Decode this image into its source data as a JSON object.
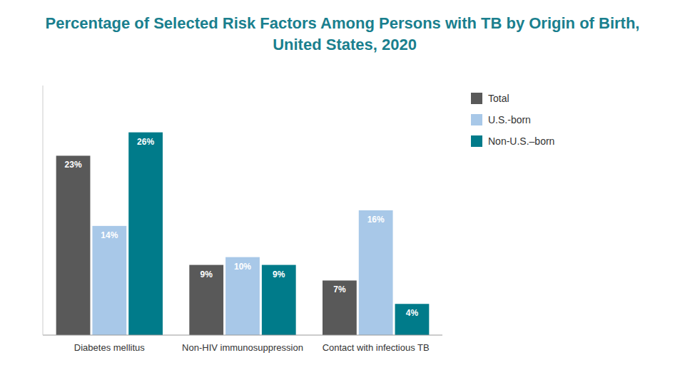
{
  "chart_data": {
    "type": "bar",
    "title": "Percentage of Selected Risk Factors Among Persons with TB by Origin of Birth, United States, 2020",
    "title_color": "#1a7f8e",
    "categories": [
      "Diabetes mellitus",
      "Non-HIV immunosuppression",
      "Contact with infectious TB"
    ],
    "series": [
      {
        "name": "Total",
        "color": "#595959",
        "values": [
          23,
          9,
          7
        ],
        "value_labels": [
          "23%",
          "9%",
          "7%"
        ]
      },
      {
        "name": "U.S.-born",
        "color": "#a8c8e8",
        "values": [
          14,
          10,
          16
        ],
        "value_labels": [
          "14%",
          "10%",
          "16%"
        ]
      },
      {
        "name": "Non-U.S.–born",
        "color": "#007b8a",
        "values": [
          26,
          9,
          4
        ],
        "value_labels": [
          "26%",
          "9%",
          "4%"
        ]
      }
    ],
    "ylim": [
      0,
      32
    ],
    "grid": false,
    "legend": "right",
    "data_labels": true,
    "tick_labels": "x"
  }
}
